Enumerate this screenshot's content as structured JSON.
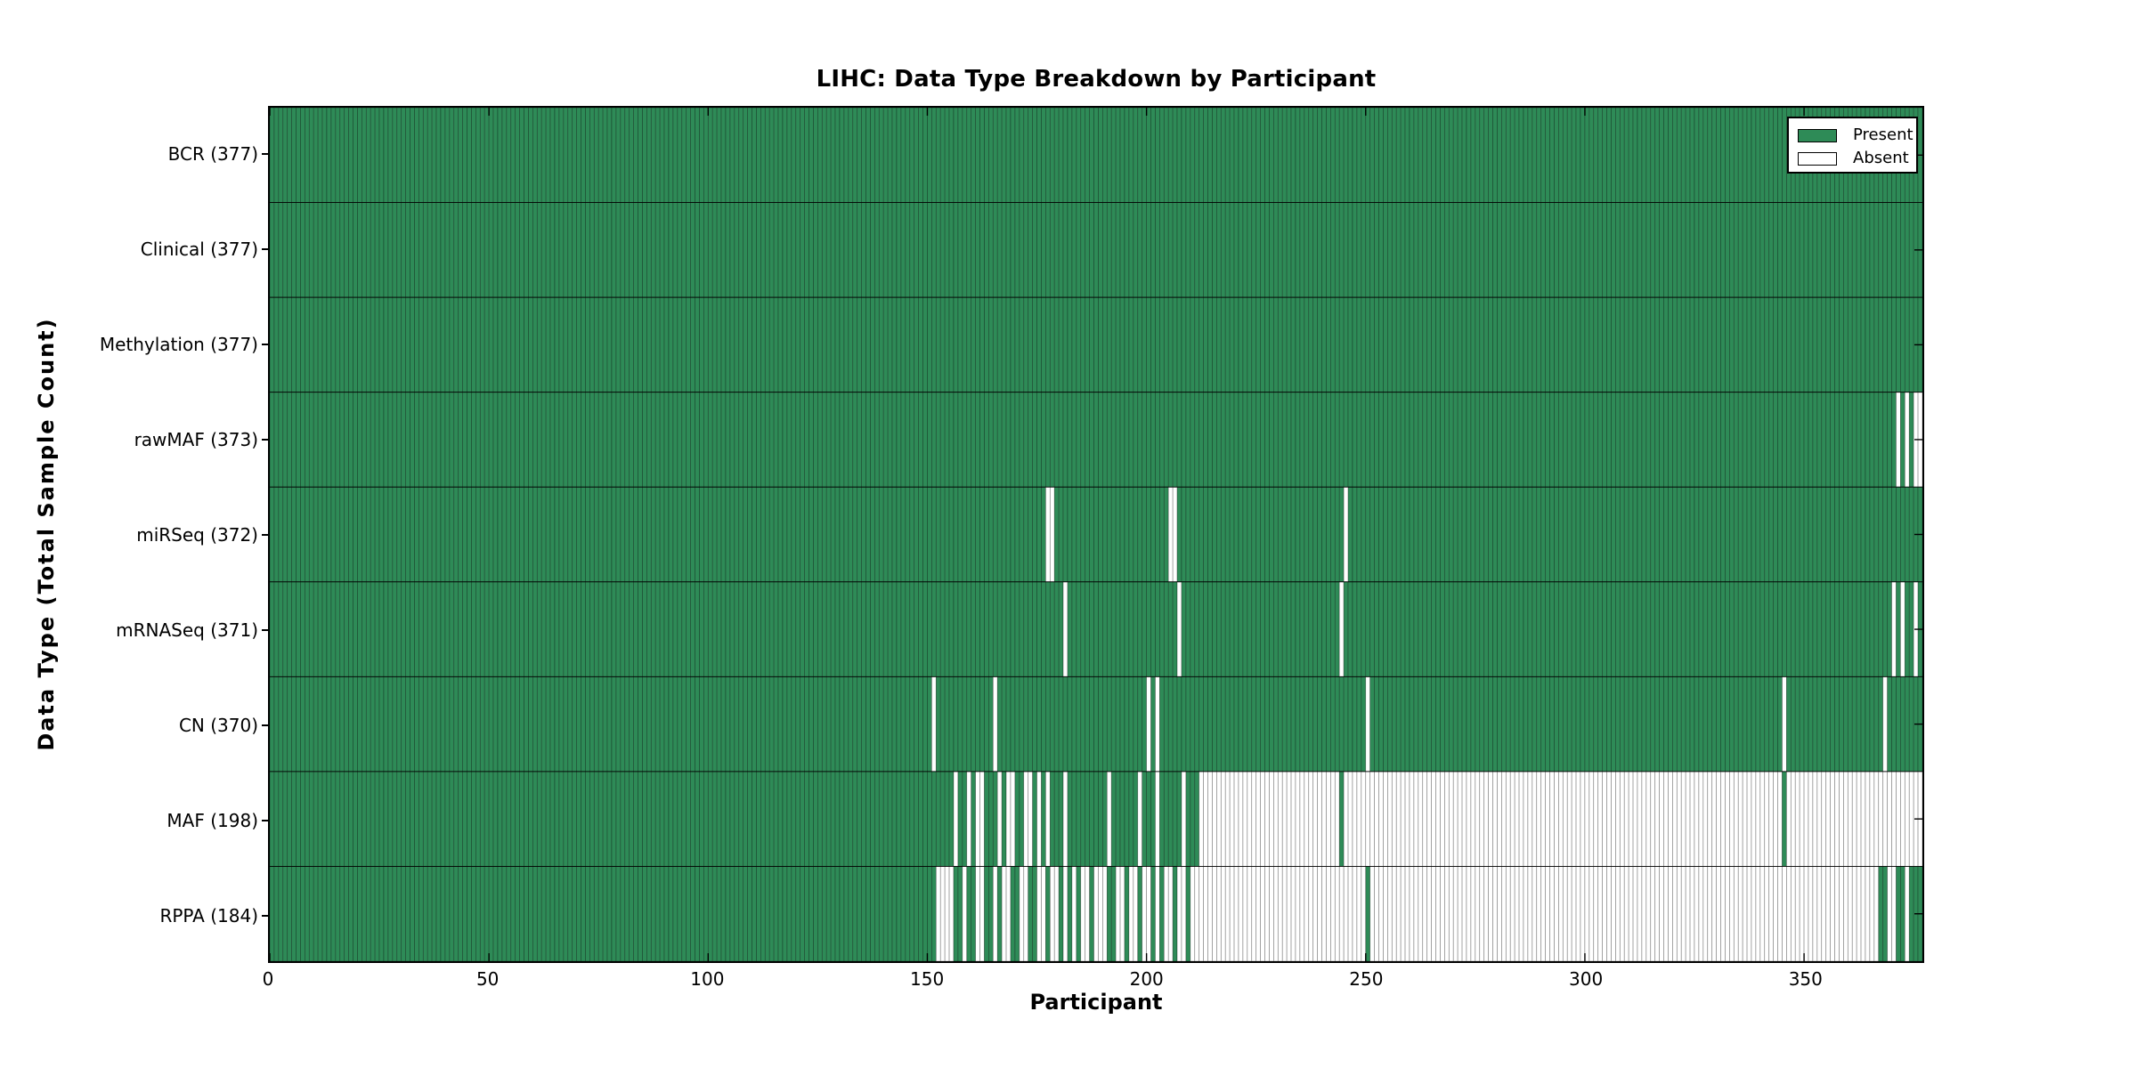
{
  "chart_data": {
    "type": "heatmap",
    "title": "LIHC: Data Type Breakdown by Participant",
    "xlabel": "Participant",
    "ylabel": "Data Type (Total Sample Count)",
    "n_participants": 377,
    "x_ticks": [
      0,
      50,
      100,
      150,
      200,
      250,
      300,
      350
    ],
    "grid": false,
    "legend_position": "upper right",
    "legend": [
      {
        "label": "Present",
        "state": "present"
      },
      {
        "label": "Absent",
        "state": "absent"
      }
    ],
    "colors": {
      "present": "#2e8b57",
      "absent": "#ffffff",
      "cell_edge": "#000000",
      "row_divider": "#000000",
      "axis": "#000000"
    },
    "rows": [
      {
        "name": "BCR",
        "count": 377,
        "absent": [],
        "absent_ranges": []
      },
      {
        "name": "Clinical",
        "count": 377,
        "absent": [],
        "absent_ranges": []
      },
      {
        "name": "Methylation",
        "count": 377,
        "absent": [],
        "absent_ranges": []
      },
      {
        "name": "rawMAF",
        "count": 373,
        "absent": [
          371,
          373,
          375,
          376
        ],
        "absent_ranges": []
      },
      {
        "name": "miRSeq",
        "count": 372,
        "absent": [
          177,
          178,
          205,
          206,
          245
        ],
        "absent_ranges": []
      },
      {
        "name": "mRNASeq",
        "count": 371,
        "absent": [
          181,
          207,
          244,
          370,
          372,
          375
        ],
        "absent_ranges": []
      },
      {
        "name": "CN",
        "count": 370,
        "absent": [
          151,
          165,
          200,
          202,
          250,
          345,
          368
        ],
        "absent_ranges": []
      },
      {
        "name": "MAF",
        "count": 198,
        "absent": [
          156,
          159,
          161,
          162,
          166,
          168,
          169,
          172,
          173,
          175,
          177,
          181,
          191,
          198,
          202,
          208
        ],
        "absent_ranges": [
          [
            212,
            243
          ],
          [
            245,
            344
          ],
          [
            346,
            376
          ]
        ]
      },
      {
        "name": "RPPA",
        "count": 184,
        "absent": [
          152,
          153,
          154,
          155,
          158,
          161,
          162,
          165,
          167,
          168,
          171,
          172,
          175,
          176,
          178,
          179,
          181,
          183,
          185,
          186,
          188,
          189,
          190,
          193,
          194,
          196,
          197,
          199,
          200,
          202,
          204,
          205,
          207,
          208,
          210,
          369,
          370,
          373
        ],
        "absent_ranges": [
          [
            211,
            249
          ],
          [
            251,
            366
          ]
        ]
      }
    ]
  }
}
